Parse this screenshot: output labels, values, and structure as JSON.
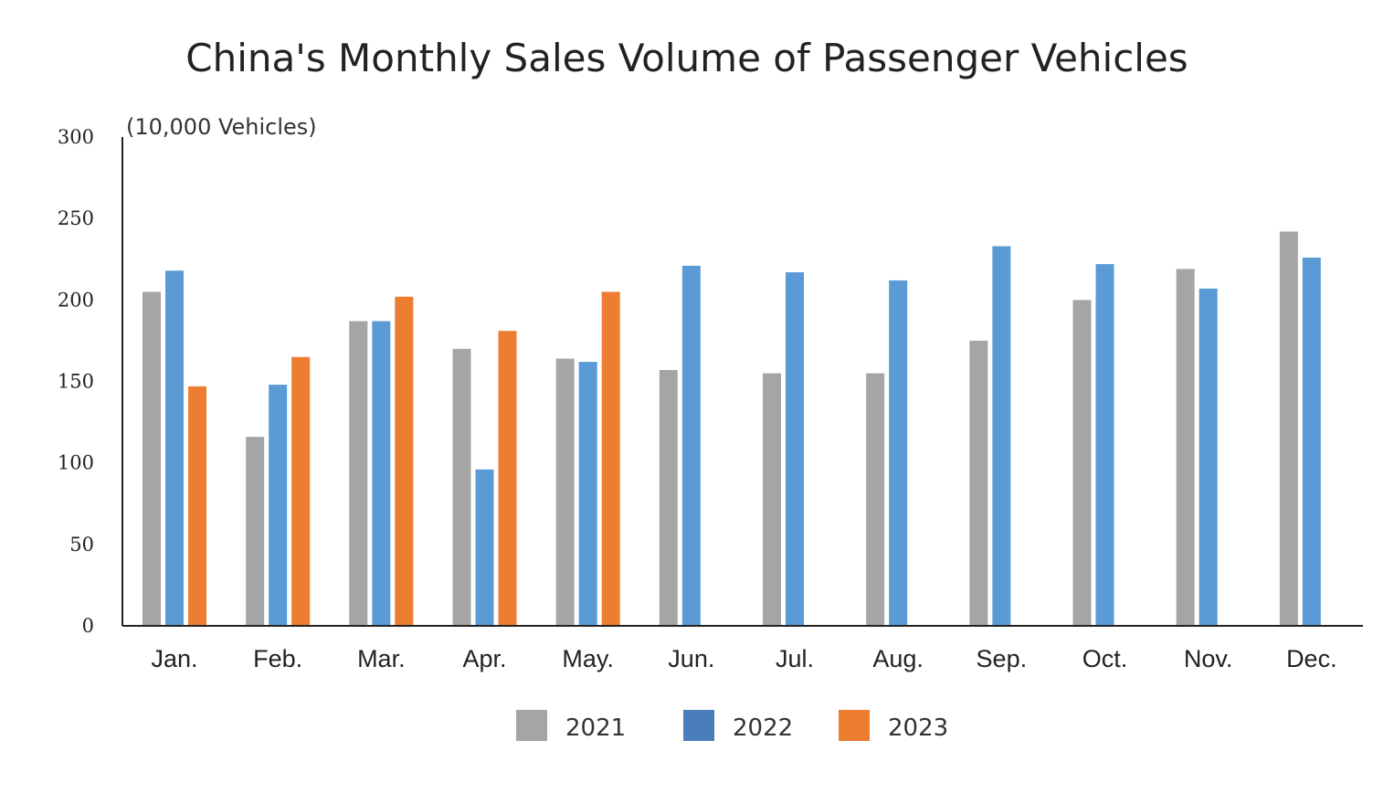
{
  "chart_data": {
    "type": "bar",
    "title": "China's Monthly Sales Volume of Passenger Vehicles",
    "ylabel": "(10,000 Vehicles)",
    "xlabel": "",
    "ylim": [
      0,
      300
    ],
    "yticks": [
      "0",
      "50",
      "100",
      "150",
      "200",
      "250",
      "300"
    ],
    "grid": false,
    "legend_position": "bottom",
    "categories": [
      "Jan.",
      "Feb.",
      "Mar.",
      "Apr.",
      "May.",
      "Jun.",
      "Jul.",
      "Aug.",
      "Sep.",
      "Oct.",
      "Nov.",
      "Dec."
    ],
    "series": [
      {
        "name": "2021",
        "color": "#a5a5a5",
        "legend_color": "#a5a5a5",
        "values": [
          205,
          116,
          187,
          170,
          164,
          157,
          155,
          155,
          175,
          200,
          219,
          242
        ]
      },
      {
        "name": "2022",
        "color": "#5b9bd5",
        "legend_color": "#4a7ebb",
        "values": [
          218,
          148,
          187,
          96,
          162,
          221,
          217,
          212,
          233,
          222,
          207,
          226
        ]
      },
      {
        "name": "2023",
        "color": "#ed7d31",
        "legend_color": "#ed7d31",
        "values": [
          147,
          165,
          202,
          181,
          205,
          null,
          null,
          null,
          null,
          null,
          null,
          null
        ]
      }
    ]
  }
}
